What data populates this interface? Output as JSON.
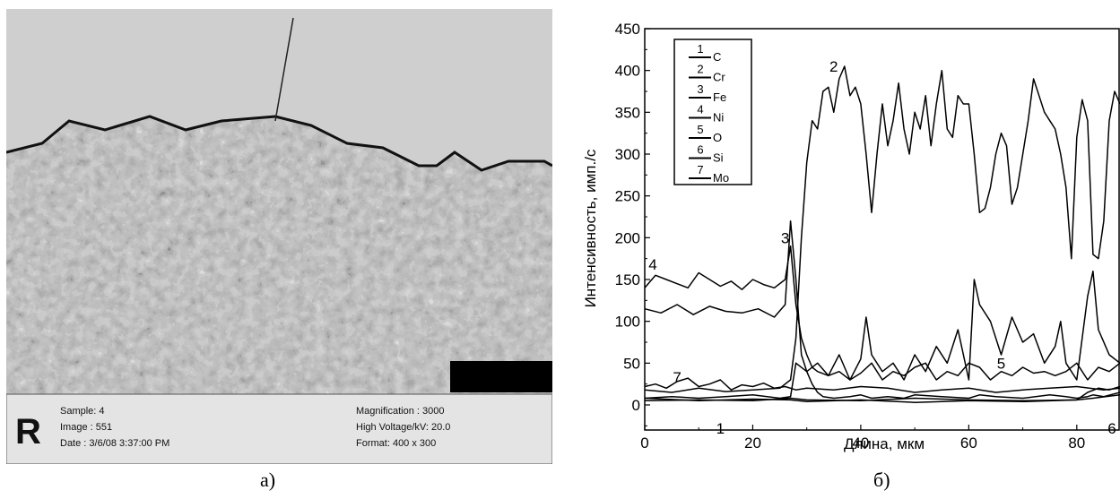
{
  "captions": {
    "a": "а)",
    "b": "б)"
  },
  "micrograph": {
    "info_left": [
      "Sample: 4",
      "Image : 551",
      "Date : 3/6/08 3:37:00 PM"
    ],
    "info_right": [
      "Magnification : 3000",
      "High Voltage/kV: 20.0",
      "Format: 400 x 300"
    ]
  },
  "chart_data": {
    "type": "line",
    "xlabel": "Длина, мкм",
    "ylabel": "Интенсивность, имп./с",
    "xlim": [
      0,
      88
    ],
    "ylim": [
      -30,
      450
    ],
    "xticks": [
      0,
      20,
      40,
      60,
      80
    ],
    "yticks": [
      0,
      50,
      100,
      150,
      200,
      250,
      300,
      350,
      400,
      450
    ],
    "legend_position": "top-left",
    "legend": [
      {
        "num": "1",
        "label": "C"
      },
      {
        "num": "2",
        "label": "Cr"
      },
      {
        "num": "3",
        "label": "Fe"
      },
      {
        "num": "4",
        "label": "Ni"
      },
      {
        "num": "5",
        "label": "O"
      },
      {
        "num": "6",
        "label": "Si"
      },
      {
        "num": "7",
        "label": "Mo"
      }
    ],
    "series": [
      {
        "name": "1",
        "x": [
          0,
          10,
          20,
          27,
          30,
          40,
          50,
          60,
          70,
          80,
          83,
          88
        ],
        "y": [
          8,
          5,
          7,
          6,
          4,
          6,
          3,
          5,
          4,
          6,
          8,
          12
        ]
      },
      {
        "name": "2",
        "x": [
          0,
          5,
          10,
          15,
          20,
          25,
          27,
          28,
          29,
          30,
          31,
          32,
          33,
          34,
          35,
          36,
          37,
          38,
          39,
          40,
          41,
          42,
          43,
          44,
          45,
          46,
          47,
          48,
          49,
          50,
          51,
          52,
          53,
          54,
          55,
          56,
          57,
          58,
          59,
          60,
          61,
          62,
          63,
          64,
          65,
          66,
          67,
          68,
          69,
          70,
          71,
          72,
          73,
          74,
          75,
          76,
          77,
          78,
          79,
          80,
          81,
          82,
          83,
          84,
          85,
          86,
          87,
          88
        ],
        "y": [
          18,
          15,
          20,
          16,
          18,
          20,
          30,
          80,
          200,
          290,
          340,
          330,
          375,
          380,
          350,
          390,
          405,
          370,
          380,
          360,
          300,
          230,
          300,
          360,
          310,
          340,
          385,
          330,
          300,
          350,
          330,
          370,
          310,
          360,
          400,
          330,
          320,
          370,
          360,
          360,
          300,
          230,
          235,
          260,
          300,
          325,
          310,
          240,
          260,
          300,
          340,
          390,
          370,
          350,
          340,
          330,
          300,
          260,
          175,
          320,
          365,
          340,
          180,
          175,
          220,
          340,
          375,
          360
        ]
      },
      {
        "name": "3",
        "x": [
          0,
          3,
          6,
          9,
          12,
          15,
          18,
          21,
          24,
          26,
          27,
          28,
          29,
          30,
          31,
          32,
          33,
          35,
          38,
          40,
          42,
          45,
          48,
          50,
          55,
          60,
          62,
          65,
          70,
          75,
          78,
          80,
          82,
          83,
          85,
          88
        ],
        "y": [
          115,
          110,
          120,
          108,
          118,
          112,
          110,
          115,
          105,
          120,
          220,
          150,
          60,
          40,
          25,
          15,
          10,
          8,
          10,
          12,
          8,
          10,
          8,
          12,
          10,
          8,
          12,
          10,
          8,
          12,
          10,
          8,
          10,
          12,
          10,
          15
        ]
      },
      {
        "name": "4",
        "x": [
          0,
          2,
          4,
          6,
          8,
          10,
          12,
          14,
          16,
          18,
          20,
          22,
          24,
          26,
          27,
          28,
          29,
          30,
          31,
          32,
          34,
          36,
          38,
          40,
          42,
          44,
          46,
          48,
          50,
          52,
          54,
          56,
          58,
          60,
          62,
          64,
          66,
          68,
          70,
          72,
          74,
          76,
          78,
          80,
          82,
          84,
          86,
          88
        ],
        "y": [
          140,
          155,
          150,
          145,
          140,
          158,
          150,
          142,
          148,
          138,
          150,
          144,
          140,
          150,
          190,
          120,
          80,
          60,
          45,
          40,
          35,
          40,
          30,
          38,
          50,
          30,
          40,
          35,
          45,
          50,
          30,
          40,
          35,
          50,
          45,
          30,
          40,
          35,
          45,
          38,
          40,
          35,
          40,
          50,
          30,
          45,
          40,
          50
        ]
      },
      {
        "name": "5",
        "x": [
          0,
          5,
          10,
          15,
          20,
          25,
          27,
          28,
          30,
          32,
          34,
          36,
          38,
          40,
          41,
          42,
          44,
          46,
          48,
          50,
          52,
          54,
          56,
          58,
          60,
          61,
          62,
          64,
          66,
          68,
          70,
          72,
          74,
          76,
          77,
          78,
          80,
          82,
          83,
          84,
          86,
          88
        ],
        "y": [
          8,
          10,
          8,
          10,
          12,
          8,
          10,
          50,
          40,
          50,
          35,
          60,
          30,
          55,
          105,
          60,
          40,
          50,
          30,
          60,
          40,
          70,
          50,
          90,
          30,
          150,
          120,
          100,
          60,
          105,
          75,
          85,
          50,
          70,
          100,
          50,
          30,
          130,
          160,
          90,
          60,
          50
        ]
      },
      {
        "name": "6",
        "x": [
          0,
          10,
          20,
          27,
          30,
          40,
          50,
          60,
          70,
          80,
          82,
          84,
          86,
          88
        ],
        "y": [
          5,
          6,
          5,
          8,
          6,
          5,
          8,
          6,
          5,
          6,
          15,
          20,
          18,
          22
        ]
      },
      {
        "name": "7",
        "x": [
          0,
          2,
          4,
          6,
          8,
          10,
          12,
          14,
          16,
          18,
          20,
          22,
          24,
          26,
          28,
          30,
          35,
          40,
          45,
          50,
          55,
          60,
          65,
          70,
          75,
          80,
          85,
          88
        ],
        "y": [
          22,
          25,
          20,
          28,
          32,
          22,
          25,
          30,
          18,
          24,
          22,
          26,
          20,
          22,
          18,
          20,
          18,
          22,
          20,
          15,
          18,
          20,
          15,
          18,
          20,
          22,
          18,
          20
        ]
      }
    ],
    "annotations": [
      {
        "text": "1",
        "x": 14,
        "y": -28
      },
      {
        "text": "2",
        "x": 35,
        "y": 405
      },
      {
        "text": "3",
        "x": 26,
        "y": 200
      },
      {
        "text": "4",
        "x": 1.5,
        "y": 168
      },
      {
        "text": "5",
        "x": 66,
        "y": 50
      },
      {
        "text": "6",
        "x": 86.5,
        "y": -28
      },
      {
        "text": "7",
        "x": 6,
        "y": 33
      }
    ]
  }
}
